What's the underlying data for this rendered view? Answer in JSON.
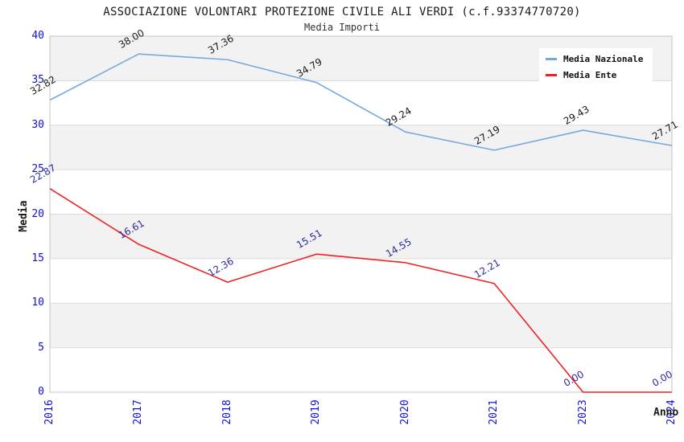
{
  "chart_data": {
    "type": "line",
    "title": "ASSOCIAZIONE VOLONTARI PROTEZIONE CIVILE ALI VERDI (c.f.93374770720)",
    "subtitle": "Media Importi",
    "xlabel": "Anno",
    "ylabel": "Media",
    "categories": [
      "2016",
      "2017",
      "2018",
      "2019",
      "2020",
      "2021",
      "2023",
      "2024"
    ],
    "series": [
      {
        "name": "Media Nazionale",
        "color": "#74a9e0",
        "label_color": "#1a1a1a",
        "values": [
          32.82,
          38.0,
          37.36,
          34.79,
          29.24,
          27.19,
          29.43,
          27.71
        ]
      },
      {
        "name": "Media Ente",
        "color": "#ee2222",
        "label_color": "#2a2a9e",
        "values": [
          22.87,
          16.61,
          12.36,
          15.51,
          14.55,
          12.21,
          0.0,
          0.0
        ]
      }
    ],
    "ylim": [
      0,
      40
    ],
    "ytick_step": 5,
    "grid": true,
    "legend_position": "top-right",
    "colors": {
      "tick_label": "#1212cf",
      "band_gray": "#f2f2f2",
      "band_white": "#ffffff",
      "gridline": "#dcdcdc",
      "plot_border": "#c6c6c6"
    }
  }
}
